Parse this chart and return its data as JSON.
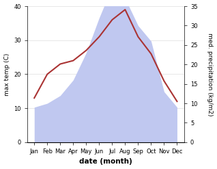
{
  "months": [
    "Jan",
    "Feb",
    "Mar",
    "Apr",
    "May",
    "Jun",
    "Jul",
    "Aug",
    "Sep",
    "Oct",
    "Nov",
    "Dec"
  ],
  "temperature": [
    13,
    20,
    23,
    24,
    27,
    31,
    36,
    39,
    31,
    26,
    18,
    12
  ],
  "precipitation": [
    9,
    10,
    12,
    16,
    23,
    32,
    40,
    37,
    30,
    26,
    13,
    9
  ],
  "temp_color": "#aa3333",
  "precip_color": "#c0c8f0",
  "temp_ylim": [
    0,
    40
  ],
  "precip_ylim": [
    0,
    35
  ],
  "temp_yticks": [
    0,
    10,
    20,
    30,
    40
  ],
  "precip_yticks": [
    0,
    5,
    10,
    15,
    20,
    25,
    30,
    35
  ],
  "xlabel": "date (month)",
  "ylabel_left": "max temp (C)",
  "ylabel_right": "med. precipitation (kg/m2)",
  "bg_color": "#ffffff",
  "figsize": [
    3.18,
    2.47
  ],
  "dpi": 100
}
